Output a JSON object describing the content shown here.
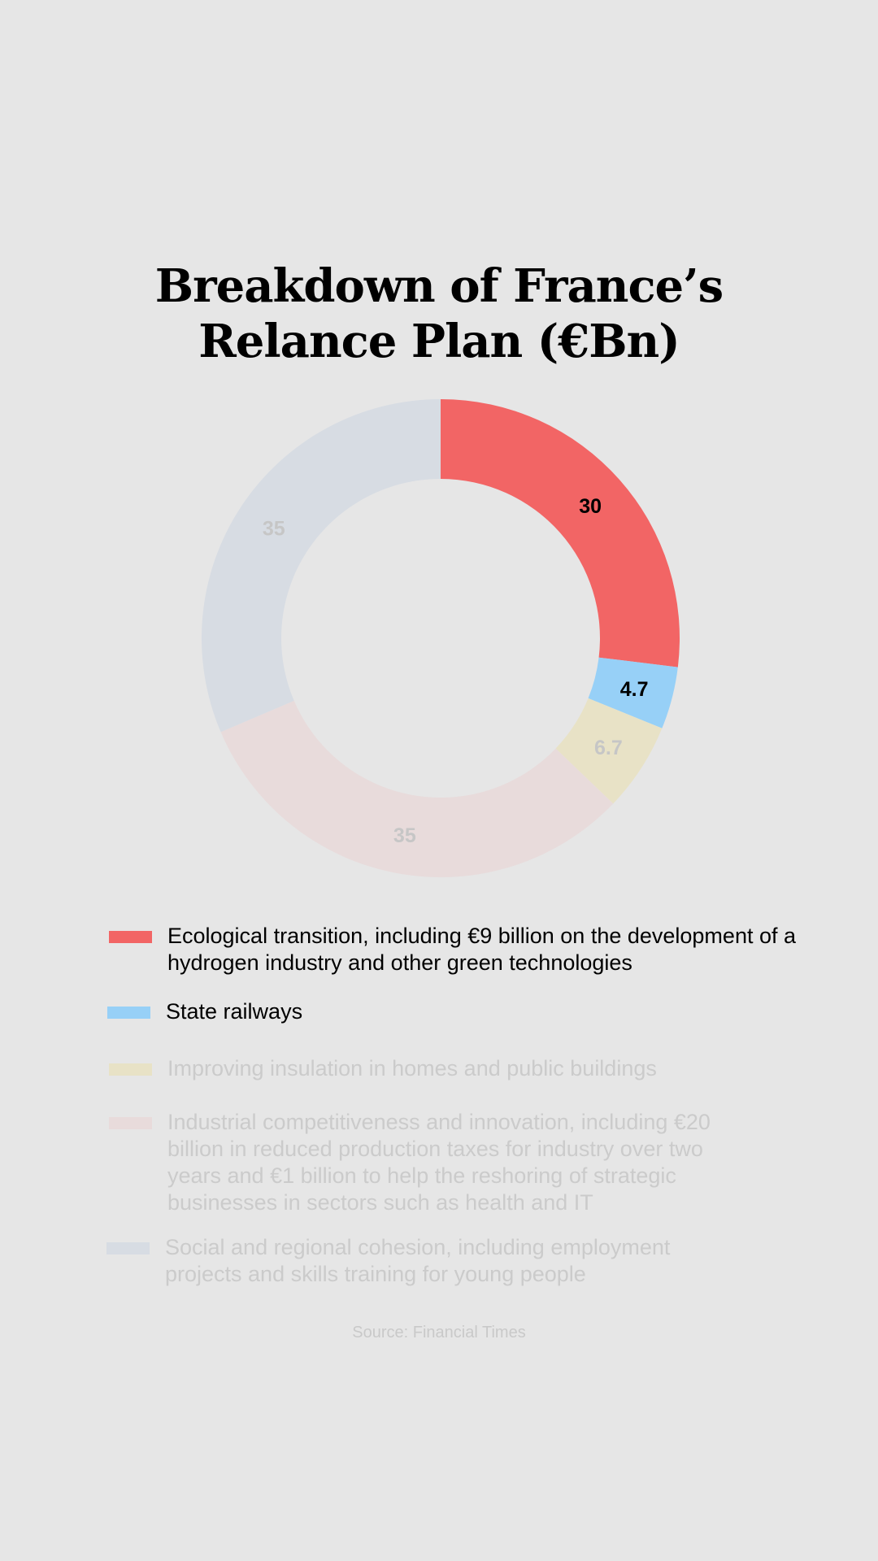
{
  "title": {
    "line1": "Breakdown of France’s",
    "line2": "Relance Plan (€Bn)"
  },
  "chart_data": {
    "type": "pie",
    "subtype": "donut",
    "title": "Breakdown of France’s Relance Plan (€Bn)",
    "start": "top",
    "direction": "clockwise",
    "series": [
      {
        "label": "30",
        "value": 30,
        "color": "#f26565",
        "label_color": "#000000",
        "legend": "Ecological transition, including €9 billion on the development of a hydrogen industry and other green technologies",
        "legend_color": "#000000"
      },
      {
        "label": "4.7",
        "value": 4.7,
        "color": "#97d0f7",
        "label_color": "#000000",
        "legend": "State railways",
        "legend_color": "#000000"
      },
      {
        "label": "6.7",
        "value": 6.7,
        "color": "#e8e2c6",
        "label_color": "#c6c6c6",
        "legend": "Improving insulation in homes and public buildings",
        "legend_color": "#cbcbcb"
      },
      {
        "label": "35",
        "value": 35,
        "color": "#e8dbdb",
        "label_color": "#c6c6c6",
        "legend": "Industrial competitiveness and innovation, including €20 billion in reduced production taxes for industry over two years and €1 billion to help the reshoring of strategic businesses in sectors such as health and IT",
        "legend_color": "#cbcbcb"
      },
      {
        "label": "35",
        "value": 35,
        "color": "#d7dce3",
        "label_color": "#c6c6c6",
        "legend": "Social and regional cohesion, including employment projects and skills training for young people",
        "legend_color": "#cbcbcb"
      }
    ]
  },
  "source": "Source: Financial Times"
}
